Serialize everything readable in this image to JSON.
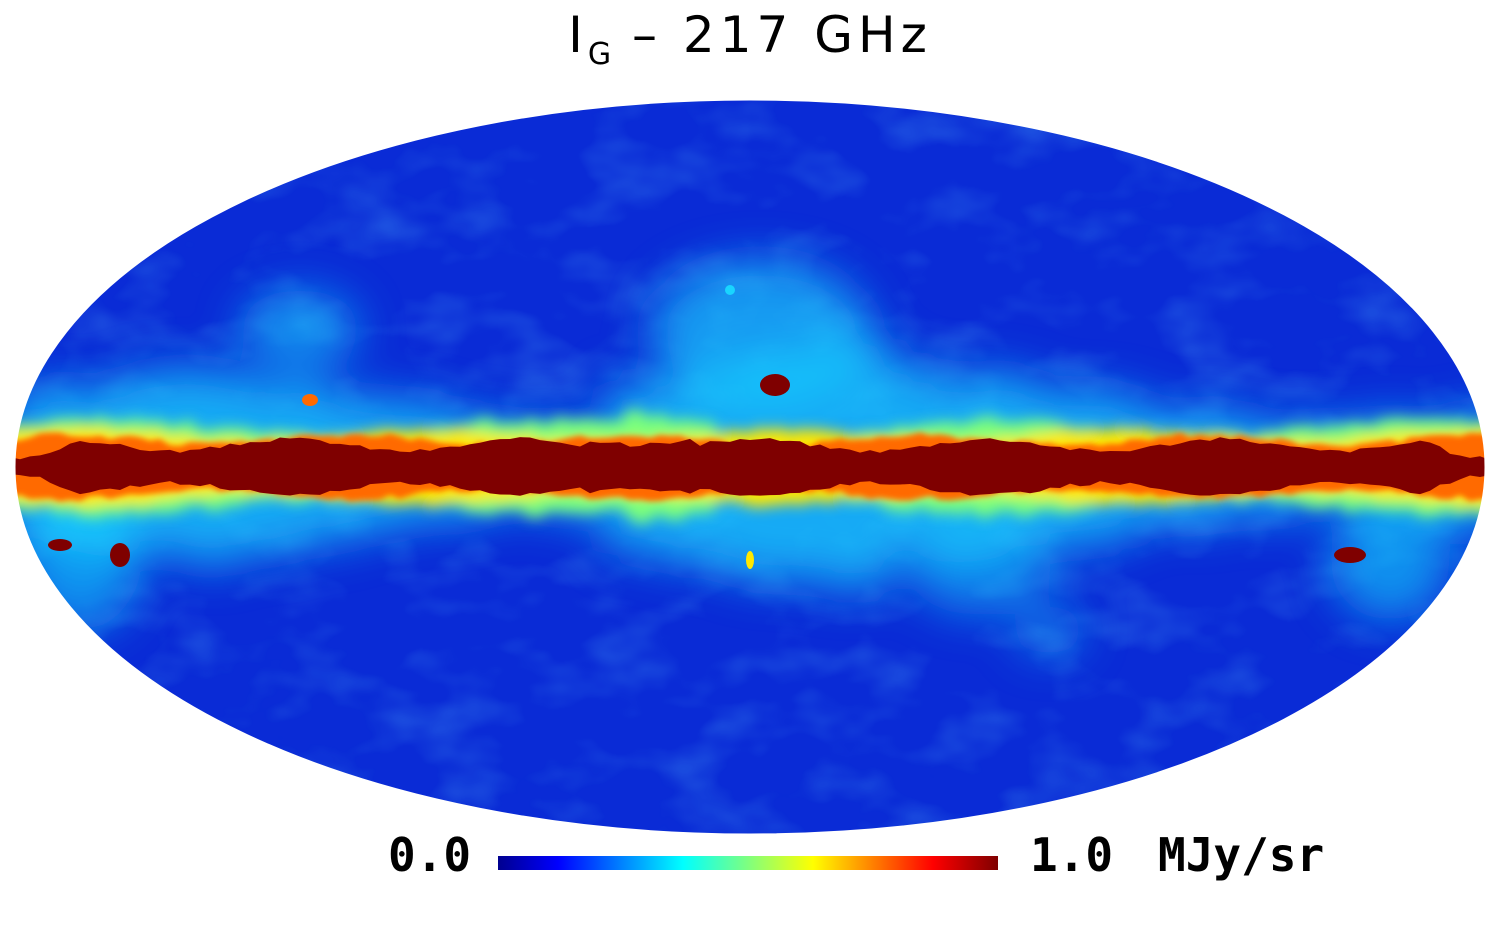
{
  "map": {
    "title_prefix": "I",
    "title_subscript": "G",
    "title_suffix": " – 217 GHz",
    "projection": "mollweide",
    "colormap": "jet",
    "colors": {
      "background_blue": "#0a2bd6",
      "band_core": "#7f0000",
      "band_orange": "#ff6a00",
      "band_yellow": "#ffe800",
      "band_green": "#7dff7a",
      "band_cyan": "#19d5ff"
    }
  },
  "colorbar": {
    "min_label": "0.0",
    "max_label": "1.0",
    "unit_label": "MJy/sr",
    "min": 0.0,
    "max": 1.0,
    "stops": [
      "#00008f",
      "#0000ff",
      "#00ffff",
      "#7fff7f",
      "#ffff00",
      "#ff0000",
      "#7f0000"
    ]
  }
}
